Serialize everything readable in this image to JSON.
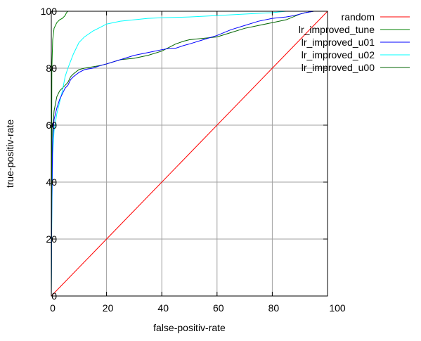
{
  "chart_data": {
    "type": "line",
    "title": "",
    "xlabel": "false-positiv-rate",
    "ylabel": "true-positiv-rate",
    "xlim": [
      0,
      100
    ],
    "ylim": [
      0,
      100
    ],
    "xticks": [
      "0",
      "20",
      "40",
      "60",
      "80",
      "100"
    ],
    "yticks": [
      "0",
      "20",
      "40",
      "60",
      "80",
      "100"
    ],
    "grid": true,
    "legend_position": "top-right-outside",
    "series": [
      {
        "name": "random",
        "color": "#ff0000",
        "x": [
          0,
          100
        ],
        "y": [
          0,
          100
        ]
      },
      {
        "name": "lr_improved_tune",
        "color": "#008000",
        "x": [
          0,
          0.2,
          0.5,
          1,
          2,
          3,
          4,
          4.5,
          5,
          5.5,
          6,
          100
        ],
        "y": [
          0,
          80,
          90,
          94,
          96,
          97,
          97.5,
          98,
          98.5,
          99.5,
          100,
          100
        ]
      },
      {
        "name": "lr_improved_u01",
        "color": "#0000ff",
        "x": [
          0,
          0.2,
          0.5,
          1,
          2,
          3,
          4,
          5,
          6,
          7,
          8,
          10,
          12,
          15,
          18,
          20,
          25,
          30,
          35,
          40,
          43,
          45,
          48,
          50,
          55,
          60,
          65,
          70,
          75,
          80,
          85,
          88,
          90,
          92,
          95,
          100
        ],
        "y": [
          0,
          35,
          55,
          62,
          66,
          69,
          71,
          73,
          74,
          76,
          77,
          78.5,
          79.5,
          80,
          81,
          81.5,
          83,
          84.5,
          85.5,
          86.5,
          87,
          87,
          88,
          88.5,
          90,
          91.5,
          93.5,
          95,
          96.5,
          97.5,
          98,
          98.5,
          99,
          99.5,
          100,
          100
        ]
      },
      {
        "name": "lr_improved_u02",
        "color": "#00ffff",
        "x": [
          0,
          0.2,
          0.5,
          1,
          2,
          3,
          4,
          5,
          6,
          8,
          10,
          12,
          15,
          18,
          20,
          25,
          30,
          35,
          40,
          50,
          60,
          70,
          80,
          85,
          90,
          100
        ],
        "y": [
          0,
          30,
          50,
          58,
          64,
          68,
          72,
          77,
          80,
          85,
          89,
          91,
          93,
          94.5,
          95.5,
          96.5,
          97,
          97.5,
          97.7,
          98,
          98.5,
          99,
          99.5,
          100,
          100,
          100
        ]
      },
      {
        "name": "lr_improved_u00",
        "color": "#006400",
        "x": [
          0,
          0.2,
          0.5,
          1,
          2,
          3,
          4,
          5,
          6,
          7,
          8,
          10,
          12,
          15,
          18,
          20,
          25,
          30,
          35,
          40,
          45,
          48,
          50,
          55,
          60,
          65,
          70,
          75,
          80,
          85,
          90,
          92,
          95,
          100
        ],
        "y": [
          0,
          40,
          58,
          65,
          70,
          72,
          73,
          74,
          75,
          77,
          78,
          79.5,
          80,
          80.5,
          81,
          81.5,
          83,
          83.5,
          84.5,
          86,
          88.5,
          89.5,
          90,
          90.5,
          91,
          92.5,
          94,
          95,
          96,
          97,
          99,
          99.5,
          100,
          100
        ]
      }
    ]
  }
}
